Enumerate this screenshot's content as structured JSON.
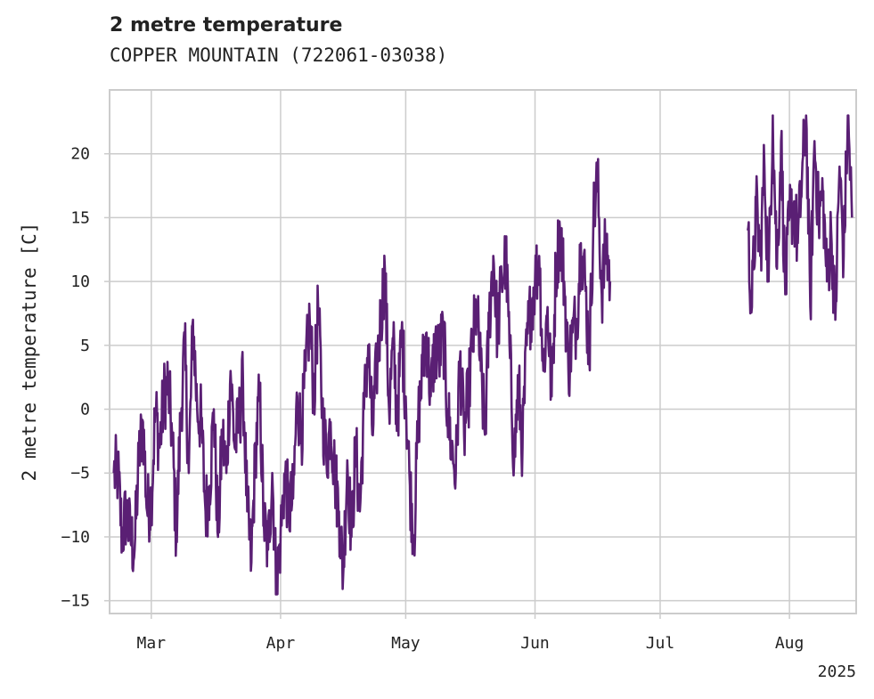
{
  "chart_data": {
    "type": "line",
    "title": "2 metre temperature",
    "subtitle": "COPPER MOUNTAIN (722061-03038)",
    "ylabel": "2 metre temperature [C]",
    "xlabel": "",
    "year_label": "2025",
    "ylim": [
      -16,
      25
    ],
    "xlim": [
      "2025-02-19",
      "2025-08-17"
    ],
    "grid": true,
    "line_color": "#5a1f74",
    "y_ticks": [
      {
        "value": -15,
        "label": "−15"
      },
      {
        "value": -10,
        "label": "−10"
      },
      {
        "value": -5,
        "label": "−5"
      },
      {
        "value": 0,
        "label": "0"
      },
      {
        "value": 5,
        "label": "5"
      },
      {
        "value": 10,
        "label": "10"
      },
      {
        "value": 15,
        "label": "15"
      },
      {
        "value": 20,
        "label": "20"
      }
    ],
    "x_ticks": [
      {
        "date": "2025-03-01",
        "label": "Mar"
      },
      {
        "date": "2025-04-01",
        "label": "Apr"
      },
      {
        "date": "2025-05-01",
        "label": "May"
      },
      {
        "date": "2025-06-01",
        "label": "Jun"
      },
      {
        "date": "2025-07-01",
        "label": "Jul"
      },
      {
        "date": "2025-08-01",
        "label": "Aug"
      }
    ],
    "series": [
      {
        "segments": [
          [
            [
              "2025-02-20",
              -5
            ],
            [
              "2025-02-21",
              -5
            ],
            [
              "2025-02-22",
              -10
            ],
            [
              "2025-02-23",
              -8
            ],
            [
              "2025-02-24",
              -10
            ],
            [
              "2025-02-25",
              -11
            ],
            [
              "2025-02-26",
              -4
            ],
            [
              "2025-02-27",
              -1
            ],
            [
              "2025-02-28",
              -8
            ],
            [
              "2025-03-01",
              -7
            ],
            [
              "2025-03-02",
              0
            ],
            [
              "2025-03-03",
              -3
            ],
            [
              "2025-03-04",
              1
            ],
            [
              "2025-03-05",
              2
            ],
            [
              "2025-03-06",
              -2
            ],
            [
              "2025-03-07",
              -10
            ],
            [
              "2025-03-08",
              -1
            ],
            [
              "2025-03-09",
              5
            ],
            [
              "2025-03-10",
              -5
            ],
            [
              "2025-03-11",
              7
            ],
            [
              "2025-03-12",
              0
            ],
            [
              "2025-03-13",
              -1
            ],
            [
              "2025-03-14",
              -8
            ],
            [
              "2025-03-15",
              -6
            ],
            [
              "2025-03-16",
              0
            ],
            [
              "2025-03-17",
              -10
            ],
            [
              "2025-03-18",
              -2
            ],
            [
              "2025-03-19",
              -5
            ],
            [
              "2025-03-20",
              3
            ],
            [
              "2025-03-21",
              -3
            ],
            [
              "2025-03-22",
              -1
            ],
            [
              "2025-03-23",
              2
            ],
            [
              "2025-03-24",
              -8
            ],
            [
              "2025-03-25",
              -12
            ],
            [
              "2025-03-26",
              -3
            ],
            [
              "2025-03-27",
              1
            ],
            [
              "2025-03-28",
              -9
            ],
            [
              "2025-03-29",
              -11
            ],
            [
              "2025-03-30",
              -5
            ],
            [
              "2025-03-31",
              -14
            ],
            [
              "2025-04-01",
              -10
            ],
            [
              "2025-04-02",
              -5
            ],
            [
              "2025-04-03",
              -8
            ],
            [
              "2025-04-04",
              -7
            ],
            [
              "2025-04-05",
              1
            ],
            [
              "2025-04-06",
              -2
            ],
            [
              "2025-04-07",
              3
            ],
            [
              "2025-04-08",
              7
            ],
            [
              "2025-04-09",
              1
            ],
            [
              "2025-04-10",
              8
            ],
            [
              "2025-04-11",
              0
            ],
            [
              "2025-04-12",
              -4
            ],
            [
              "2025-04-13",
              -1
            ],
            [
              "2025-04-14",
              -5
            ],
            [
              "2025-04-15",
              -8
            ],
            [
              "2025-04-16",
              -13
            ],
            [
              "2025-04-17",
              -4
            ],
            [
              "2025-04-18",
              -10
            ],
            [
              "2025-04-19",
              -3
            ],
            [
              "2025-04-20",
              -8
            ],
            [
              "2025-04-21",
              0
            ],
            [
              "2025-04-22",
              5
            ],
            [
              "2025-04-23",
              -2
            ],
            [
              "2025-04-24",
              3
            ],
            [
              "2025-04-25",
              7
            ],
            [
              "2025-04-26",
              11
            ],
            [
              "2025-04-27",
              0
            ],
            [
              "2025-04-28",
              5
            ],
            [
              "2025-04-29",
              -1
            ],
            [
              "2025-04-30",
              6
            ],
            [
              "2025-05-01",
              1
            ],
            [
              "2025-05-02",
              -6
            ],
            [
              "2025-05-03",
              -10
            ],
            [
              "2025-05-04",
              -1
            ],
            [
              "2025-05-05",
              3
            ],
            [
              "2025-05-06",
              6
            ],
            [
              "2025-05-07",
              1
            ],
            [
              "2025-05-08",
              5
            ],
            [
              "2025-05-09",
              4
            ],
            [
              "2025-05-10",
              6
            ],
            [
              "2025-05-11",
              0
            ],
            [
              "2025-05-12",
              -3
            ],
            [
              "2025-05-13",
              -5
            ],
            [
              "2025-05-14",
              4
            ],
            [
              "2025-05-15",
              -2
            ],
            [
              "2025-05-16",
              1
            ],
            [
              "2025-05-17",
              5
            ],
            [
              "2025-05-18",
              8
            ],
            [
              "2025-05-19",
              3
            ],
            [
              "2025-05-20",
              -2
            ],
            [
              "2025-05-21",
              7
            ],
            [
              "2025-05-22",
              12
            ],
            [
              "2025-05-23",
              6
            ],
            [
              "2025-05-24",
              10
            ],
            [
              "2025-05-25",
              12
            ],
            [
              "2025-05-26",
              4
            ],
            [
              "2025-05-27",
              -4
            ],
            [
              "2025-05-28",
              2
            ],
            [
              "2025-05-29",
              -3
            ],
            [
              "2025-05-30",
              5
            ],
            [
              "2025-05-31",
              8
            ],
            [
              "2025-06-01",
              10
            ],
            [
              "2025-06-02",
              12
            ],
            [
              "2025-06-03",
              3
            ],
            [
              "2025-06-04",
              8
            ],
            [
              "2025-06-05",
              1
            ],
            [
              "2025-06-06",
              11
            ],
            [
              "2025-06-07",
              14
            ],
            [
              "2025-06-08",
              10
            ],
            [
              "2025-06-09",
              3
            ],
            [
              "2025-06-10",
              6
            ],
            [
              "2025-06-11",
              7
            ],
            [
              "2025-06-12",
              13
            ],
            [
              "2025-06-13",
              10
            ],
            [
              "2025-06-14",
              4
            ],
            [
              "2025-06-15",
              15
            ],
            [
              "2025-06-16",
              18
            ],
            [
              "2025-06-17",
              9
            ],
            [
              "2025-06-18",
              13
            ],
            [
              "2025-06-19",
              10
            ]
          ],
          [
            [
              "2025-07-22",
              14
            ],
            [
              "2025-07-23",
              8
            ],
            [
              "2025-07-24",
              16
            ],
            [
              "2025-07-25",
              12
            ],
            [
              "2025-07-26",
              19
            ],
            [
              "2025-07-27",
              10
            ],
            [
              "2025-07-28",
              23
            ],
            [
              "2025-07-29",
              11
            ],
            [
              "2025-07-30",
              21
            ],
            [
              "2025-07-31",
              9
            ],
            [
              "2025-08-01",
              15
            ],
            [
              "2025-08-02",
              16
            ],
            [
              "2025-08-03",
              13
            ],
            [
              "2025-08-04",
              18
            ],
            [
              "2025-08-05",
              23
            ],
            [
              "2025-08-06",
              8
            ],
            [
              "2025-08-07",
              21
            ],
            [
              "2025-08-08",
              15
            ],
            [
              "2025-08-09",
              17
            ],
            [
              "2025-08-10",
              10
            ],
            [
              "2025-08-11",
              14
            ],
            [
              "2025-08-12",
              7
            ],
            [
              "2025-08-13",
              19
            ],
            [
              "2025-08-14",
              12
            ],
            [
              "2025-08-15",
              23
            ],
            [
              "2025-08-16",
              15
            ]
          ]
        ]
      }
    ]
  }
}
